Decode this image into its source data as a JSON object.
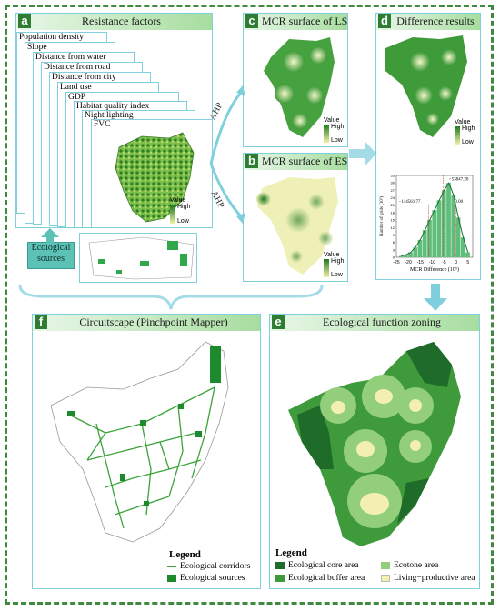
{
  "panels": {
    "a": {
      "letter": "a",
      "title": "Resistance factors"
    },
    "b": {
      "letter": "b",
      "title": "MCR surface of ES"
    },
    "c": {
      "letter": "c",
      "title": "MCR surface of LS"
    },
    "d": {
      "letter": "d",
      "title": "Difference results"
    },
    "e": {
      "letter": "e",
      "title": "Ecological function zoning"
    },
    "f": {
      "letter": "f",
      "title": "Circuitscape (Pinchpoint Mapper)"
    }
  },
  "factors": [
    "Population density",
    "Slope",
    "Distance from water",
    "Distance from road",
    "Distance from city",
    "Land use",
    "GDP",
    "Habitat quality index",
    "Night lighting",
    "FVC"
  ],
  "value_legend": {
    "title": "Value",
    "high": "High",
    "low": "Low"
  },
  "ecological_sources_label": "Ecological sources",
  "ahp_label": "AHP",
  "histogram": {
    "ylabel": "Number of grids (10³)",
    "xlabel": "MCR Difference (10⁵)",
    "x_ticks": [
      "-25",
      "-20",
      "-15",
      "-10",
      "-5",
      "0",
      "5"
    ],
    "y_ticks": [
      "0",
      "3",
      "6",
      "9",
      "12",
      "15",
      "18",
      "21",
      "24",
      "27",
      "30",
      "33"
    ],
    "annotations": [
      "−53847.20",
      "−114561.77",
      "0.00"
    ]
  },
  "chart_data": {
    "type": "bar",
    "title": "",
    "xlabel": "MCR Difference (10⁵)",
    "ylabel": "Number of grids (10³)",
    "xlim": [
      -25,
      7
    ],
    "ylim": [
      0,
      33
    ],
    "x": [
      -23,
      -21,
      -19,
      -17,
      -15,
      -13,
      -11,
      -9,
      -7,
      -5,
      -3,
      -1,
      1,
      3,
      5
    ],
    "values": [
      0.5,
      1,
      2,
      4,
      7,
      11,
      15,
      19,
      23,
      27,
      30,
      25,
      16,
      8,
      2
    ]
  },
  "legend_f": {
    "title": "Legend",
    "items": [
      {
        "label": "Ecological corridors",
        "color": "#3aa33a"
      },
      {
        "label": "Ecological sources",
        "color": "#1e8a2e"
      }
    ]
  },
  "legend_e": {
    "title": "Legend",
    "items": [
      {
        "label": "Ecological core area",
        "color": "#1f6b2a"
      },
      {
        "label": "Ecotone area",
        "color": "#93cf7a"
      },
      {
        "label": "Ecological buffer area",
        "color": "#3e9a3a"
      },
      {
        "label": "Living−productive area",
        "color": "#f3efb1"
      }
    ]
  }
}
